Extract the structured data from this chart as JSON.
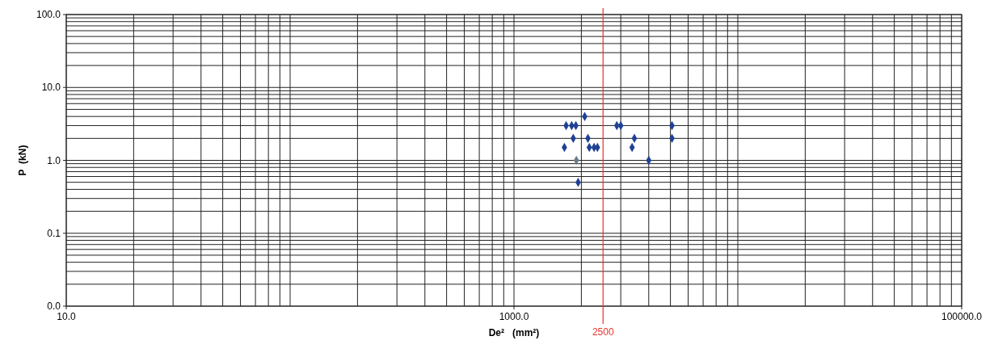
{
  "chart_data": {
    "type": "scatter",
    "xlabel": "De²   (mm²)",
    "ylabel": "P  (kN)",
    "log": "xy",
    "grid": true,
    "marker": "diamond",
    "xlim": [
      10,
      100000
    ],
    "ylim": [
      0.01,
      100
    ],
    "xticks": [
      {
        "value": 10,
        "label": "10.0"
      },
      {
        "value": 1000,
        "label": "1000.0"
      },
      {
        "value": 100000,
        "label": "100000.0"
      }
    ],
    "yticks": [
      {
        "value": 0.01,
        "label": "0.0"
      },
      {
        "value": 0.1,
        "label": "0.1"
      },
      {
        "value": 1,
        "label": "1.0"
      },
      {
        "value": 10,
        "label": "10.0"
      },
      {
        "value": 100,
        "label": "100.0"
      }
    ],
    "series": [
      {
        "color": "#1f4196",
        "x": [
          2070,
          1710,
          1810,
          1890,
          2880,
          3000,
          5080,
          1840,
          2140,
          3450,
          5080,
          1680,
          2170,
          2280,
          2360,
          3370,
          4000,
          1935
        ],
        "values": [
          4,
          3,
          3,
          3,
          3,
          3,
          3,
          2,
          2,
          2,
          2,
          1.5,
          1.5,
          1.5,
          1.5,
          1.5,
          1,
          0.5
        ]
      },
      {
        "color": "#6b7a8c",
        "x": [
          1900
        ],
        "values": [
          1
        ]
      }
    ],
    "ref_lines": [
      {
        "axis": "x",
        "value": 2500,
        "label": "2500",
        "color": "#e8332a"
      }
    ]
  }
}
